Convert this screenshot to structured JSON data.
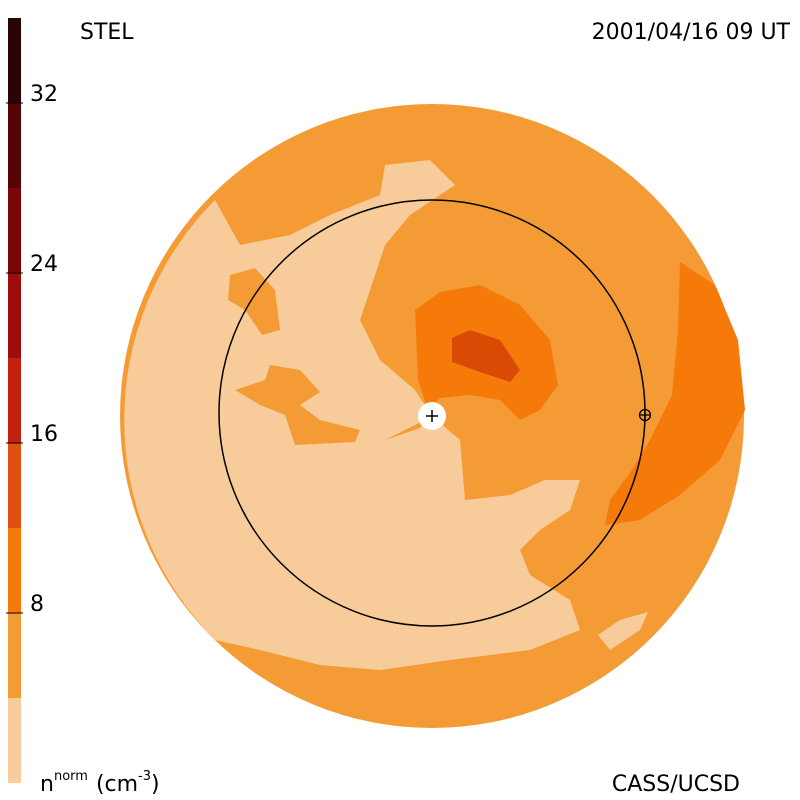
{
  "chart_data": {
    "type": "colorbar",
    "title": "STEL",
    "date": "2001/04/16 09 UT",
    "credit": "CASS/UCSD",
    "label": {
      "base": "n",
      "sup1": "norm",
      "unit": "(cm",
      "sup2": "-3",
      "close": ")"
    },
    "ylim": [
      0,
      36
    ],
    "yticks": [
      8,
      16,
      24,
      32
    ],
    "bins": [
      0,
      4,
      8,
      12,
      16,
      20,
      24,
      28,
      32,
      36
    ],
    "colors": [
      "#f8cc9a",
      "#f59b35",
      "#f57a0a",
      "#e05010",
      "#c42010",
      "#a00c0c",
      "#7a0606",
      "#550404",
      "#2a0404"
    ]
  }
}
